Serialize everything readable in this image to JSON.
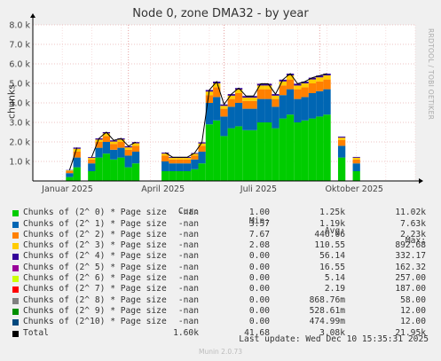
{
  "title": "Node 0, zone DMA32 - by year",
  "side_text": "RRDTOOL / TOBI OETIKER",
  "footer": "Munin 2.0.73",
  "last_update": "Last update: Wed Dec 10 15:35:31 2025",
  "legend_header": [
    "Cur:",
    "Min:",
    "Avg:",
    "Max:"
  ],
  "legend": [
    {
      "name": "Chunks of (2^ 0) * Page size",
      "color": "#00cc00",
      "cur": "-nan",
      "min": "1.00",
      "avg": "1.25k",
      "max": "11.02k"
    },
    {
      "name": "Chunks of (2^ 1) * Page size",
      "color": "#0066b3",
      "cur": "-nan",
      "min": "3.57",
      "avg": "1.19k",
      "max": "7.63k"
    },
    {
      "name": "Chunks of (2^ 2) * Page size",
      "color": "#ff8000",
      "cur": "-nan",
      "min": "7.67",
      "avg": "446.06",
      "max": "2.23k"
    },
    {
      "name": "Chunks of (2^ 3) * Page size",
      "color": "#ffcc00",
      "cur": "-nan",
      "min": "2.08",
      "avg": "110.55",
      "max": "892.68"
    },
    {
      "name": "Chunks of (2^ 4) * Page size",
      "color": "#330099",
      "cur": "-nan",
      "min": "0.00",
      "avg": "56.14",
      "max": "332.17"
    },
    {
      "name": "Chunks of (2^ 5) * Page size",
      "color": "#990099",
      "cur": "-nan",
      "min": "0.00",
      "avg": "16.55",
      "max": "162.32"
    },
    {
      "name": "Chunks of (2^ 6) * Page size",
      "color": "#ccff00",
      "cur": "-nan",
      "min": "0.00",
      "avg": "5.14",
      "max": "257.00"
    },
    {
      "name": "Chunks of (2^ 7) * Page size",
      "color": "#ff0000",
      "cur": "-nan",
      "min": "0.00",
      "avg": "2.19",
      "max": "187.00"
    },
    {
      "name": "Chunks of (2^ 8) * Page size",
      "color": "#808080",
      "cur": "-nan",
      "min": "0.00",
      "avg": "868.76m",
      "max": "58.00"
    },
    {
      "name": "Chunks of (2^ 9) * Page size",
      "color": "#008f00",
      "cur": "-nan",
      "min": "0.00",
      "avg": "528.61m",
      "max": "12.00"
    },
    {
      "name": "Chunks of (2^10) * Page size",
      "color": "#00487d",
      "cur": "-nan",
      "min": "0.00",
      "avg": "474.99m",
      "max": "12.00"
    },
    {
      "name": "Total",
      "color": "#000000",
      "cur": "1.60k",
      "min": "41.68",
      "avg": "3.08k",
      "max": "21.95k"
    }
  ],
  "chart_data": {
    "type": "area",
    "title": "Node 0, zone DMA32 - by year",
    "ylabel": "chunks",
    "ylim": [
      0,
      8000
    ],
    "y_ticks": [
      1000,
      2000,
      3000,
      4000,
      5000,
      6000,
      7000,
      8000
    ],
    "y_tick_labels": [
      "1.0 k",
      "2.0 k",
      "3.0 k",
      "4.0 k",
      "5.0 k",
      "6.0 k",
      "7.0 k",
      "8.0 k"
    ],
    "x_labels": [
      "Januar 2025",
      "April 2025",
      "Juli 2025",
      "Oktober 2025"
    ],
    "x_label_weeks": [
      4.7,
      17.7,
      30.7,
      43.7
    ],
    "grid": true,
    "x_weeks": [
      0,
      1,
      2,
      3,
      4,
      5,
      6,
      7,
      8,
      9,
      10,
      11,
      12,
      13,
      14,
      15,
      16,
      17,
      18,
      19,
      20,
      21,
      22,
      23,
      24,
      25,
      26,
      27,
      28,
      29,
      30,
      31,
      32,
      33,
      34,
      35,
      36,
      37,
      38,
      39,
      40,
      41,
      42,
      43,
      44,
      45,
      46,
      47,
      48,
      49,
      50,
      51,
      52
    ],
    "series": [
      {
        "name": "Chunks of (2^ 0) * Page size",
        "values": [
          null,
          null,
          null,
          null,
          null,
          200,
          700,
          null,
          500,
          1200,
          1400,
          1100,
          1200,
          700,
          900,
          null,
          null,
          null,
          500,
          500,
          500,
          500,
          600,
          900,
          2900,
          3100,
          2300,
          2700,
          2800,
          2600,
          2600,
          3000,
          3000,
          2700,
          3200,
          3400,
          3000,
          3100,
          3200,
          3300,
          3400,
          null,
          1200,
          null,
          500,
          null,
          null,
          null,
          null,
          null,
          null,
          null,
          null
        ]
      },
      {
        "name": "Chunks of (2^ 1) * Page size",
        "values": [
          null,
          null,
          null,
          null,
          null,
          200,
          500,
          null,
          400,
          500,
          600,
          500,
          500,
          600,
          600,
          null,
          null,
          null,
          500,
          400,
          400,
          400,
          500,
          600,
          1100,
          1200,
          1000,
          1100,
          1200,
          1100,
          1100,
          1200,
          1200,
          1100,
          1200,
          1300,
          1200,
          1200,
          1300,
          1300,
          1300,
          null,
          600,
          null,
          400,
          null,
          null,
          null,
          null,
          null,
          null,
          null,
          null
        ]
      },
      {
        "name": "Chunks of (2^ 2) * Page size",
        "values": [
          null,
          null,
          null,
          null,
          null,
          100,
          300,
          null,
          200,
          300,
          300,
          300,
          300,
          300,
          300,
          null,
          null,
          null,
          300,
          200,
          200,
          200,
          200,
          300,
          400,
          500,
          400,
          400,
          500,
          400,
          400,
          500,
          500,
          400,
          500,
          500,
          500,
          500,
          500,
          500,
          500,
          null,
          300,
          null,
          200,
          null,
          null,
          null,
          null,
          null,
          null,
          null,
          null
        ]
      },
      {
        "name": "Chunks of (2^ 3) * Page size",
        "values": [
          null,
          null,
          null,
          null,
          null,
          40,
          150,
          null,
          80,
          120,
          140,
          120,
          120,
          120,
          130,
          null,
          null,
          null,
          100,
          80,
          80,
          80,
          90,
          120,
          180,
          200,
          150,
          170,
          180,
          170,
          170,
          190,
          190,
          170,
          200,
          210,
          190,
          200,
          200,
          210,
          210,
          null,
          120,
          null,
          90,
          null,
          null,
          null,
          null,
          null,
          null,
          null,
          null
        ]
      },
      {
        "name": "Chunks of (2^ 4) * Page size",
        "values": [
          null,
          null,
          null,
          null,
          null,
          20,
          60,
          null,
          40,
          60,
          60,
          60,
          60,
          60,
          60,
          null,
          null,
          null,
          50,
          40,
          40,
          40,
          40,
          60,
          80,
          90,
          70,
          80,
          80,
          80,
          80,
          90,
          90,
          80,
          90,
          90,
          90,
          90,
          90,
          90,
          90,
          null,
          50,
          null,
          40,
          null,
          null,
          null,
          null,
          null,
          null,
          null,
          null
        ]
      }
    ],
    "total": [
      null,
      null,
      null,
      null,
      null,
      560,
      1710,
      null,
      1220,
      2180,
      2500,
      2080,
      2180,
      1780,
      1990,
      null,
      null,
      null,
      1450,
      1220,
      1220,
      1220,
      1430,
      1980,
      4660,
      5090,
      3920,
      4450,
      4760,
      4350,
      4350,
      4980,
      4980,
      4450,
      5190,
      5500,
      4980,
      5090,
      5290,
      5400,
      5500,
      null,
      2270,
      null,
      1230,
      null,
      null,
      null,
      null,
      null,
      null,
      null,
      null
    ]
  }
}
